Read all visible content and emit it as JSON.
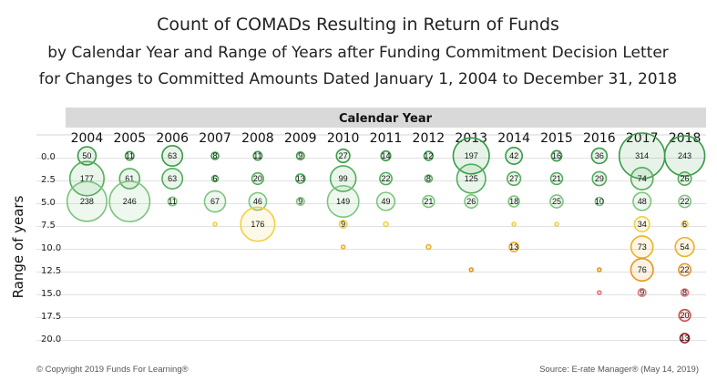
{
  "chart_data": {
    "type": "bubble",
    "title": "Count of COMADs Resulting in Return of Funds",
    "subtitle_lines": [
      "by Calendar Year and Range of Years after Funding Commitment Decision Letter",
      "for Changes to Committed Amounts Dated January 1, 2004 to December 31, 2018"
    ],
    "column_header": "Calendar Year",
    "ylabel": "Range of years",
    "columns": [
      "2004",
      "2005",
      "2006",
      "2007",
      "2008",
      "2009",
      "2010",
      "2011",
      "2012",
      "2013",
      "2014",
      "2015",
      "2016",
      "2017",
      "2018"
    ],
    "rows": [
      "0.0",
      "2.5",
      "5.0",
      "7.5",
      "10.0",
      "12.5",
      "15.0",
      "17.5",
      "20.0"
    ],
    "grid": true,
    "cells": [
      {
        "row": "0.0",
        "col": "2004",
        "value": 50,
        "label": "50"
      },
      {
        "row": "0.0",
        "col": "2005",
        "value": 11,
        "label": "11"
      },
      {
        "row": "0.0",
        "col": "2006",
        "value": 63,
        "label": "63"
      },
      {
        "row": "0.0",
        "col": "2007",
        "value": 8,
        "label": "8"
      },
      {
        "row": "0.0",
        "col": "2008",
        "value": 11,
        "label": "11"
      },
      {
        "row": "0.0",
        "col": "2009",
        "value": 9,
        "label": "9"
      },
      {
        "row": "0.0",
        "col": "2010",
        "value": 27,
        "label": "27"
      },
      {
        "row": "0.0",
        "col": "2011",
        "value": 14,
        "label": "14"
      },
      {
        "row": "0.0",
        "col": "2012",
        "value": 12,
        "label": "12"
      },
      {
        "row": "0.0",
        "col": "2013",
        "value": 197,
        "label": "197"
      },
      {
        "row": "0.0",
        "col": "2014",
        "value": 42,
        "label": "42"
      },
      {
        "row": "0.0",
        "col": "2015",
        "value": 16,
        "label": "16"
      },
      {
        "row": "0.0",
        "col": "2016",
        "value": 36,
        "label": "36"
      },
      {
        "row": "0.0",
        "col": "2017",
        "value": 314,
        "label": "314"
      },
      {
        "row": "0.0",
        "col": "2018",
        "value": 243,
        "label": "243"
      },
      {
        "row": "2.5",
        "col": "2004",
        "value": 177,
        "label": "177"
      },
      {
        "row": "2.5",
        "col": "2005",
        "value": 61,
        "label": "61"
      },
      {
        "row": "2.5",
        "col": "2006",
        "value": 63,
        "label": "63"
      },
      {
        "row": "2.5",
        "col": "2007",
        "value": 6,
        "label": "6"
      },
      {
        "row": "2.5",
        "col": "2008",
        "value": 20,
        "label": "20"
      },
      {
        "row": "2.5",
        "col": "2009",
        "value": 13,
        "label": "13"
      },
      {
        "row": "2.5",
        "col": "2010",
        "value": 99,
        "label": "99"
      },
      {
        "row": "2.5",
        "col": "2011",
        "value": 22,
        "label": "22"
      },
      {
        "row": "2.5",
        "col": "2012",
        "value": 8,
        "label": "8"
      },
      {
        "row": "2.5",
        "col": "2013",
        "value": 125,
        "label": "125"
      },
      {
        "row": "2.5",
        "col": "2014",
        "value": 27,
        "label": "27"
      },
      {
        "row": "2.5",
        "col": "2015",
        "value": 21,
        "label": "21"
      },
      {
        "row": "2.5",
        "col": "2016",
        "value": 29,
        "label": "29"
      },
      {
        "row": "2.5",
        "col": "2017",
        "value": 74,
        "label": "74"
      },
      {
        "row": "2.5",
        "col": "2018",
        "value": 26,
        "label": "26"
      },
      {
        "row": "5.0",
        "col": "2004",
        "value": 238,
        "label": "238"
      },
      {
        "row": "5.0",
        "col": "2005",
        "value": 246,
        "label": "246"
      },
      {
        "row": "5.0",
        "col": "2006",
        "value": 11,
        "label": "11"
      },
      {
        "row": "5.0",
        "col": "2007",
        "value": 67,
        "label": "67"
      },
      {
        "row": "5.0",
        "col": "2008",
        "value": 46,
        "label": "46"
      },
      {
        "row": "5.0",
        "col": "2009",
        "value": 9,
        "label": "9"
      },
      {
        "row": "5.0",
        "col": "2010",
        "value": 149,
        "label": "149"
      },
      {
        "row": "5.0",
        "col": "2011",
        "value": 49,
        "label": "49"
      },
      {
        "row": "5.0",
        "col": "2012",
        "value": 21,
        "label": "21"
      },
      {
        "row": "5.0",
        "col": "2013",
        "value": 26,
        "label": "26"
      },
      {
        "row": "5.0",
        "col": "2014",
        "value": 18,
        "label": "18"
      },
      {
        "row": "5.0",
        "col": "2015",
        "value": 25,
        "label": "25"
      },
      {
        "row": "5.0",
        "col": "2016",
        "value": 10,
        "label": "10"
      },
      {
        "row": "5.0",
        "col": "2017",
        "value": 48,
        "label": "48"
      },
      {
        "row": "5.0",
        "col": "2018",
        "value": 22,
        "label": "22"
      },
      {
        "row": "7.5",
        "col": "2007",
        "value": 1,
        "label": ""
      },
      {
        "row": "7.5",
        "col": "2008",
        "value": 176,
        "label": "176"
      },
      {
        "row": "7.5",
        "col": "2010",
        "value": 9,
        "label": "9"
      },
      {
        "row": "7.5",
        "col": "2011",
        "value": 3,
        "label": ""
      },
      {
        "row": "7.5",
        "col": "2014",
        "value": 1,
        "label": ""
      },
      {
        "row": "7.5",
        "col": "2015",
        "value": 1,
        "label": ""
      },
      {
        "row": "7.5",
        "col": "2017",
        "value": 34,
        "label": "34"
      },
      {
        "row": "7.5",
        "col": "2018",
        "value": 6,
        "label": "6"
      },
      {
        "row": "10.0",
        "col": "2010",
        "value": 1,
        "label": ""
      },
      {
        "row": "10.0",
        "col": "2012",
        "value": 3,
        "label": ""
      },
      {
        "row": "10.0",
        "col": "2014",
        "value": 13,
        "label": "13"
      },
      {
        "row": "10.0",
        "col": "2017",
        "value": 73,
        "label": "73"
      },
      {
        "row": "10.0",
        "col": "2018",
        "value": 54,
        "label": "54"
      },
      {
        "row": "12.5",
        "col": "2013",
        "value": 1,
        "label": ""
      },
      {
        "row": "12.5",
        "col": "2016",
        "value": 1,
        "label": ""
      },
      {
        "row": "12.5",
        "col": "2017",
        "value": 76,
        "label": "76"
      },
      {
        "row": "12.5",
        "col": "2018",
        "value": 22,
        "label": "22"
      },
      {
        "row": "15.0",
        "col": "2016",
        "value": 1,
        "label": ""
      },
      {
        "row": "15.0",
        "col": "2017",
        "value": 9,
        "label": "9"
      },
      {
        "row": "15.0",
        "col": "2018",
        "value": 8,
        "label": "8"
      },
      {
        "row": "17.5",
        "col": "2018",
        "value": 20,
        "label": "20"
      },
      {
        "row": "20.0",
        "col": "2018",
        "value": 13,
        "label": "13"
      }
    ],
    "row_colors": {
      "0.0": "#3a9a48",
      "2.5": "#52ae5a",
      "5.0": "#7dc47f",
      "7.5": "#f2d040",
      "10.0": "#ecb12b",
      "12.5": "#e6951f",
      "15.0": "#e87474",
      "17.5": "#d04a4a",
      "20.0": "#a1242d"
    }
  },
  "footer": {
    "copyright": "© Copyright 2019 Funds For Learning®",
    "source": "Source: E-rate Manager® (May 14, 2019)"
  }
}
